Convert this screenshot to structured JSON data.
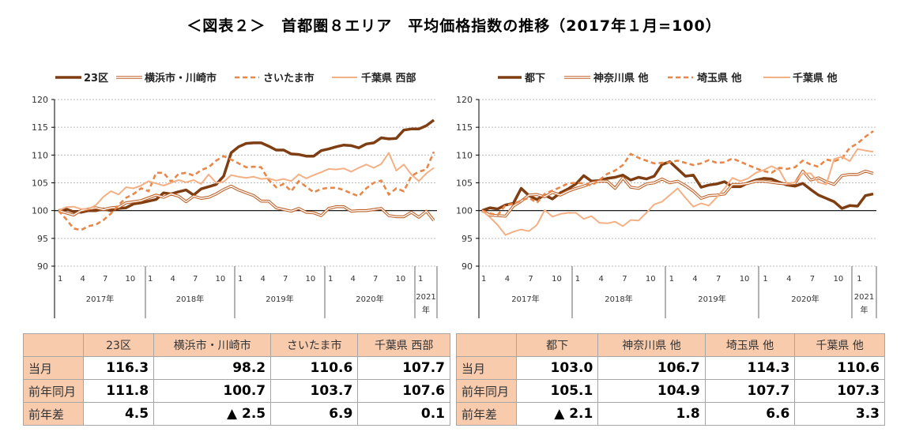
{
  "title": "＜図表２＞　首都圏８エリア　平均価格指数の推移（2017年１月=100）",
  "colors": {
    "dark": "#7f3d12",
    "double": "#c0622a",
    "dashed": "#e8874a",
    "light": "#f4b085",
    "header_fill": "#f8cbad"
  },
  "chart_data": [
    {
      "type": "line",
      "ylim": [
        90,
        120
      ],
      "yticks": [
        90,
        95,
        100,
        105,
        110,
        115,
        120
      ],
      "grid": true,
      "legend": "top",
      "x_month_ticks": [
        "1",
        "4",
        "7",
        "10",
        "1",
        "4",
        "7",
        "10",
        "1",
        "4",
        "7",
        "10",
        "1",
        "4",
        "7",
        "10",
        "1"
      ],
      "year_labels": [
        "2017年",
        "2018年",
        "2019年",
        "2020年",
        "2021",
        "年"
      ],
      "x_range": [
        "2017-01",
        "2021-03"
      ],
      "series": [
        {
          "name": "23区",
          "style": "dark",
          "values": [
            100,
            100.3,
            99.8,
            99.7,
            100,
            100,
            100.3,
            100,
            100.4,
            100.5,
            101.2,
            101.4,
            101.7,
            102,
            103.2,
            103,
            103.4,
            103.7,
            102.8,
            103.9,
            104.3,
            104.7,
            106.2,
            110.4,
            111.5,
            112.1,
            112.2,
            112.2,
            111.6,
            110.9,
            110.9,
            110.2,
            110.1,
            109.8,
            109.8,
            110.8,
            111.1,
            111.5,
            111.8,
            111.7,
            111.3,
            112,
            112.2,
            113.1,
            112.9,
            113,
            114.5,
            114.7,
            114.7,
            115.3,
            116.3
          ]
        },
        {
          "name": "横浜市・川崎市",
          "style": "double",
          "values": [
            100,
            99.6,
            99.2,
            100,
            100.3,
            100.5,
            100.2,
            100.5,
            100.6,
            101.4,
            101.6,
            101.8,
            102.3,
            102.8,
            102.4,
            103,
            102.6,
            101.6,
            102.6,
            102.2,
            102.4,
            103,
            103.8,
            104.4,
            103.7,
            103.2,
            102.7,
            101.7,
            101.7,
            100.5,
            100.2,
            99.9,
            100.4,
            99.7,
            99.6,
            99.1,
            100.4,
            100.7,
            100.7,
            99.9,
            100,
            100,
            100.2,
            100.4,
            99.1,
            98.9,
            98.9,
            99.7,
            98.8,
            99.9,
            98.2
          ]
        },
        {
          "name": "さいたま市",
          "style": "dashed",
          "values": [
            100,
            98.5,
            96.8,
            96.5,
            97.2,
            97.5,
            98.3,
            99.5,
            101,
            102.3,
            103,
            104,
            103.5,
            106.8,
            106.8,
            105.2,
            106.6,
            106.8,
            106.3,
            107.3,
            107.8,
            109,
            109.8,
            109.2,
            108.5,
            107.8,
            107.9,
            107.8,
            105.5,
            104.2,
            104.8,
            103.5,
            105.3,
            104.3,
            103.3,
            103.9,
            104.1,
            104.1,
            103.7,
            103.1,
            102.6,
            104,
            105,
            105.4,
            102.9,
            104,
            103.5,
            106.2,
            107,
            107.4,
            110.6
          ]
        },
        {
          "name": "千葉県 西部",
          "style": "light",
          "values": [
            100,
            100.6,
            100.7,
            100.3,
            100.3,
            101,
            102.5,
            103.5,
            102.9,
            104.2,
            104,
            104.5,
            105.3,
            104.9,
            104.5,
            105,
            105.5,
            105.1,
            105.5,
            104.8,
            106.5,
            105,
            105.2,
            106.4,
            106.1,
            105.9,
            106.1,
            105.7,
            105.8,
            105.4,
            105.7,
            105.3,
            106.5,
            105.8,
            106.4,
            106.9,
            107.5,
            107.4,
            107.6,
            107,
            107.7,
            108.3,
            107.7,
            108.4,
            110.4,
            107.2,
            108.3,
            106.5,
            105.3,
            106.7,
            107.7
          ]
        }
      ]
    },
    {
      "type": "line",
      "ylim": [
        90,
        120
      ],
      "yticks": [
        90,
        95,
        100,
        105,
        110,
        115,
        120
      ],
      "grid": true,
      "legend": "top",
      "x_month_ticks": [
        "1",
        "4",
        "7",
        "10",
        "1",
        "4",
        "7",
        "10",
        "1",
        "4",
        "7",
        "10",
        "1",
        "4",
        "7",
        "10",
        "1"
      ],
      "year_labels": [
        "2017年",
        "2018年",
        "2019年",
        "2020年",
        "2021",
        "年"
      ],
      "x_range": [
        "2017-01",
        "2021-03"
      ],
      "series": [
        {
          "name": "都下",
          "style": "dark",
          "values": [
            100,
            100.5,
            100.3,
            101,
            101.3,
            104,
            102.7,
            102,
            102.8,
            102.1,
            103.2,
            103.9,
            104.8,
            106.3,
            105.3,
            105.4,
            105.8,
            106,
            106.4,
            105.5,
            106,
            105.7,
            106.2,
            108.3,
            108.8,
            107.5,
            106.2,
            106.4,
            104.2,
            104.6,
            104.8,
            105.2,
            104.3,
            104.3,
            105,
            105.5,
            105.8,
            105.7,
            105.1,
            104.6,
            104.4,
            104.9,
            103.8,
            102.8,
            102.2,
            101.6,
            100.4,
            100.9,
            100.8,
            102.7,
            103
          ]
        },
        {
          "name": "神奈川県 他",
          "style": "double",
          "values": [
            100,
            99.2,
            99.1,
            99,
            100.8,
            101.7,
            102.8,
            102.9,
            102.5,
            103.3,
            102.8,
            103.5,
            104,
            104.4,
            105,
            105.3,
            105.3,
            104,
            105.9,
            104.2,
            104,
            104.8,
            105,
            105.7,
            105,
            105.3,
            104.5,
            103.5,
            102.2,
            102.7,
            102.8,
            103,
            104.7,
            104.7,
            104.9,
            105.3,
            105.3,
            105.1,
            104.9,
            104.8,
            104.9,
            107.1,
            105.5,
            105.9,
            105.2,
            104.7,
            106.3,
            106.5,
            106.5,
            107.1,
            106.7
          ]
        },
        {
          "name": "埼玉県 他",
          "style": "dashed",
          "values": [
            100,
            99.5,
            99.2,
            101,
            101.2,
            101.8,
            102.3,
            101.4,
            103,
            103.6,
            104.2,
            104.9,
            105,
            104.9,
            104.5,
            105.5,
            106.6,
            107.2,
            108.2,
            110.2,
            109.5,
            109,
            108.5,
            108.6,
            108.7,
            109,
            108.6,
            108.2,
            108.5,
            109.1,
            108.6,
            108.7,
            109.4,
            108.8,
            108.2,
            107.6,
            107.1,
            106.8,
            107.7,
            107.5,
            107.8,
            109,
            108.3,
            107.9,
            109.2,
            108.9,
            109.4,
            111.3,
            112.1,
            113.3,
            114.3
          ]
        },
        {
          "name": "千葉県 他",
          "style": "light",
          "values": [
            100,
            98.8,
            97.4,
            95.6,
            96.2,
            96.6,
            96.3,
            97.4,
            100.1,
            98.9,
            99.4,
            99.6,
            99.6,
            98.5,
            99,
            97.8,
            97.7,
            98,
            97.2,
            98.3,
            98.2,
            99.6,
            101.1,
            101.6,
            102.8,
            104,
            102.3,
            100.7,
            101.3,
            100.9,
            102.4,
            104,
            105.9,
            105.3,
            105.8,
            106.8,
            107.3,
            108,
            107.3,
            104.8,
            105.1,
            106.7,
            106.7,
            105.1,
            104.7,
            109.3,
            109.7,
            108.9,
            111.1,
            110.8,
            110.6
          ]
        }
      ]
    }
  ],
  "tables": [
    {
      "headers": [
        "23区",
        "横浜市・川崎市",
        "さいたま市",
        "千葉県 西部"
      ],
      "rows": [
        {
          "label": "当月",
          "values": [
            "116.3",
            "98.2",
            "110.6",
            "107.7"
          ]
        },
        {
          "label": "前年同月",
          "values": [
            "111.8",
            "100.7",
            "103.7",
            "107.6"
          ]
        },
        {
          "label": "前年差",
          "values": [
            "4.5",
            "▲ 2.5",
            "6.9",
            "0.1"
          ]
        }
      ]
    },
    {
      "headers": [
        "都下",
        "神奈川県 他",
        "埼玉県 他",
        "千葉県 他"
      ],
      "rows": [
        {
          "label": "当月",
          "values": [
            "103.0",
            "106.7",
            "114.3",
            "110.6"
          ]
        },
        {
          "label": "前年同月",
          "values": [
            "105.1",
            "104.9",
            "107.7",
            "107.3"
          ]
        },
        {
          "label": "前年差",
          "values": [
            "▲ 2.1",
            "1.8",
            "6.6",
            "3.3"
          ]
        }
      ]
    }
  ]
}
